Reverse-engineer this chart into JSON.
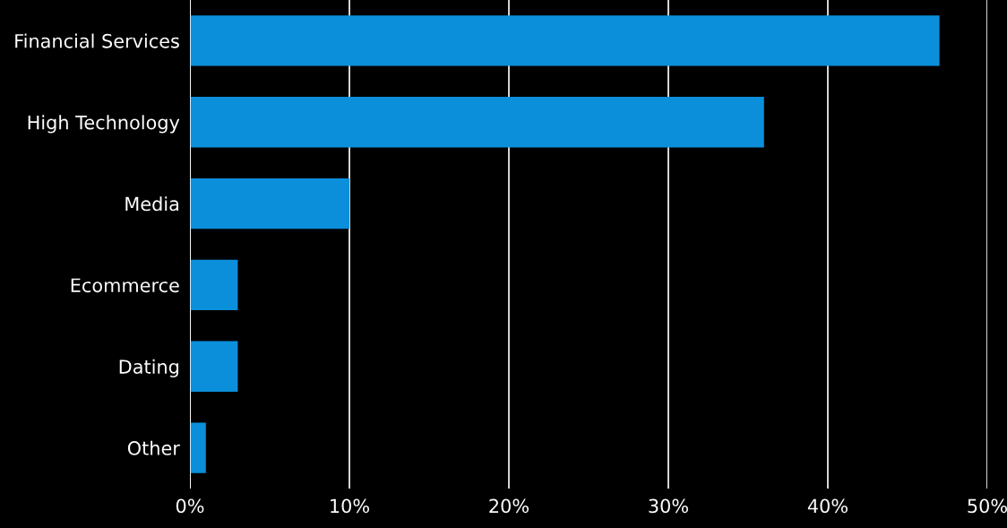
{
  "chart_data": {
    "type": "bar",
    "orientation": "horizontal",
    "categories": [
      "Financial Services",
      "High Technology",
      "Media",
      "Ecommerce",
      "Dating",
      "Other"
    ],
    "values": [
      47,
      36,
      10,
      3,
      3,
      1
    ],
    "color": "#0b8fdb",
    "xlim": [
      0,
      50
    ],
    "xticks": [
      {
        "value": 0,
        "label": "0%"
      },
      {
        "value": 10,
        "label": "10%"
      },
      {
        "value": 20,
        "label": "20%"
      },
      {
        "value": 30,
        "label": "30%"
      },
      {
        "value": 40,
        "label": "40%"
      },
      {
        "value": 50,
        "label": "50%"
      }
    ],
    "grid": "x"
  }
}
